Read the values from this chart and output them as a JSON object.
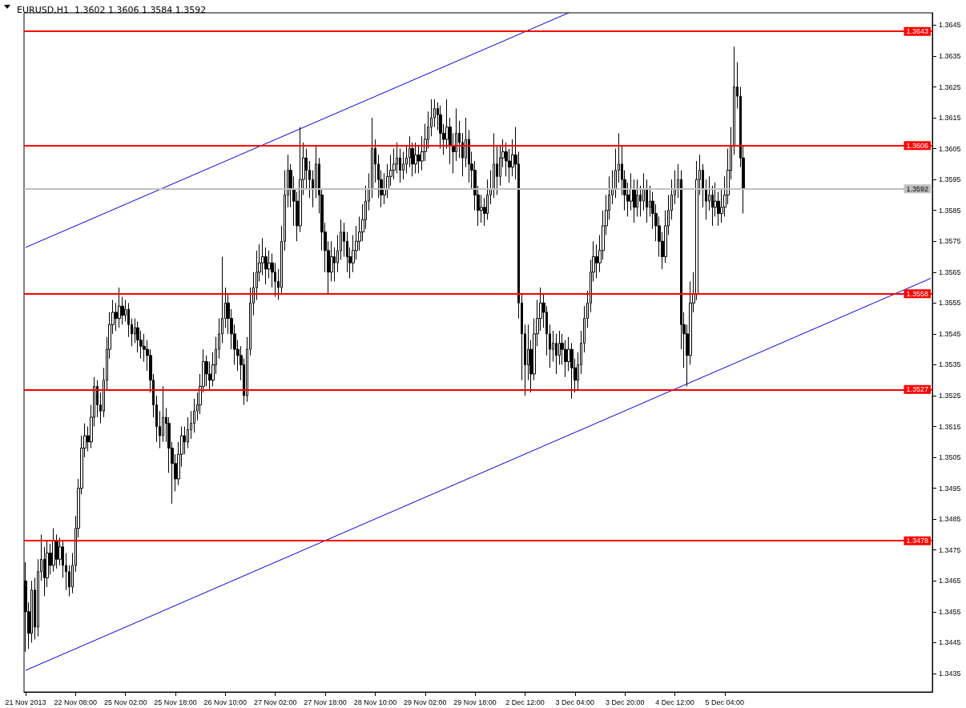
{
  "chart_data": {
    "type": "candlestick",
    "title": "EURUSD,H1  1.3602 1.3606 1.3584 1.3592",
    "categories": [
      "21 Nov 2013",
      null,
      null,
      null,
      null,
      null,
      null,
      null,
      null,
      null,
      null,
      null,
      null,
      null,
      null,
      null,
      "22 Nov 08:00",
      null,
      null,
      null,
      null,
      null,
      null,
      null,
      null,
      null,
      null,
      null,
      null,
      null,
      null,
      null,
      "25 Nov 02:00",
      null,
      null,
      null,
      null,
      null,
      null,
      null,
      null,
      null,
      null,
      null,
      null,
      null,
      null,
      null,
      "25 Nov 18:00",
      null,
      null,
      null,
      null,
      null,
      null,
      null,
      null,
      null,
      null,
      null,
      null,
      null,
      null,
      null,
      "26 Nov 10:00",
      null,
      null,
      null,
      null,
      null,
      null,
      null,
      null,
      null,
      null,
      null,
      null,
      null,
      null,
      null,
      "27 Nov 02:00",
      null,
      null,
      null,
      null,
      null,
      null,
      null,
      null,
      null,
      null,
      null,
      null,
      null,
      null,
      null,
      "27 Nov 18:00",
      null,
      null,
      null,
      null,
      null,
      null,
      null,
      null,
      null,
      null,
      null,
      null,
      null,
      null,
      null,
      "28 Nov 10:00",
      null,
      null,
      null,
      null,
      null,
      null,
      null,
      null,
      null,
      null,
      null,
      null,
      null,
      null,
      null,
      "29 Nov 02:00",
      null,
      null,
      null,
      null,
      null,
      null,
      null,
      null,
      null,
      null,
      null,
      null,
      null,
      null,
      null,
      "29 Nov 18:00",
      null,
      null,
      null,
      null,
      null,
      null,
      null,
      null,
      null,
      null,
      null,
      null,
      null,
      null,
      null,
      "2 Dec 12:00",
      null,
      null,
      null,
      null,
      null,
      null,
      null,
      null,
      null,
      null,
      null,
      null,
      null,
      null,
      null,
      "3 Dec 04:00",
      null,
      null,
      null,
      null,
      null,
      null,
      null,
      null,
      null,
      null,
      null,
      null,
      null,
      null,
      null,
      "3 Dec 20:00",
      null,
      null,
      null,
      null,
      null,
      null,
      null,
      null,
      null,
      null,
      null,
      null,
      null,
      null,
      null,
      "4 Dec 12:00",
      null,
      null,
      null,
      null,
      null,
      null,
      null,
      null,
      null,
      null,
      null,
      null,
      null,
      null,
      null,
      "5 Dec 04:00",
      null,
      null,
      null,
      null,
      null,
      null,
      null,
      null,
      null,
      null,
      null,
      null,
      null,
      null,
      null,
      null,
      null,
      null,
      null,
      null,
      null,
      null,
      null,
      null,
      null,
      null,
      null,
      null,
      null,
      null,
      null,
      null,
      null,
      null,
      null,
      null,
      null,
      null,
      null,
      null,
      null,
      null,
      null,
      null,
      null,
      null,
      null,
      null,
      null,
      null,
      null,
      null,
      null,
      null,
      null,
      null,
      null,
      null,
      null,
      null,
      null,
      null,
      null,
      null,
      null,
      null
    ],
    "ylim": [
      1.3429,
      1.3649
    ],
    "yticks": [
      1.3435,
      1.3445,
      1.3455,
      1.3465,
      1.3475,
      1.3485,
      1.3495,
      1.3505,
      1.3515,
      1.3525,
      1.3535,
      1.3545,
      1.3555,
      1.3565,
      1.3575,
      1.3585,
      1.3595,
      1.3605,
      1.3615,
      1.3625,
      1.3635,
      1.3645
    ],
    "grid": false,
    "ref_lines": [
      {
        "axis": "y",
        "value": 1.3643,
        "label": "1.3643",
        "color": "#ff0000"
      },
      {
        "axis": "y",
        "value": 1.3606,
        "label": "1.3606",
        "color": "#ff0000"
      },
      {
        "axis": "y",
        "value": 1.3558,
        "label": "1.3558",
        "color": "#ff0000"
      },
      {
        "axis": "y",
        "value": 1.3527,
        "label": "1.3527",
        "color": "#ff0000"
      },
      {
        "axis": "y",
        "value": 1.3478,
        "label": "1.3478",
        "color": "#ff0000"
      },
      {
        "axis": "y",
        "value": 1.3592,
        "label": "1.3592",
        "color": "#c0c0c0"
      }
    ],
    "series": [
      {
        "color": "#000000",
        "ohlc": [
          [
            1.3465,
            1.3471,
            1.3442,
            1.3455
          ],
          [
            1.3455,
            1.3458,
            1.3443,
            1.3448
          ],
          [
            1.3448,
            1.3465,
            1.3445,
            1.3462
          ],
          [
            1.3462,
            1.3466,
            1.3446,
            1.345
          ],
          [
            1.345,
            1.3472,
            1.3447,
            1.3468
          ],
          [
            1.3468,
            1.348,
            1.3465,
            1.3472
          ],
          [
            1.3472,
            1.3476,
            1.346,
            1.3466
          ],
          [
            1.3466,
            1.3478,
            1.3463,
            1.3474
          ],
          [
            1.3474,
            1.3477,
            1.3467,
            1.347
          ],
          [
            1.347,
            1.3482,
            1.3468,
            1.3478
          ],
          [
            1.3478,
            1.348,
            1.3469,
            1.3472
          ],
          [
            1.3472,
            1.3479,
            1.347,
            1.3476
          ],
          [
            1.3476,
            1.3478,
            1.3466,
            1.347
          ],
          [
            1.347,
            1.3474,
            1.3462,
            1.3468
          ],
          [
            1.3468,
            1.347,
            1.346,
            1.3463
          ],
          [
            1.3463,
            1.3474,
            1.3461,
            1.347
          ],
          [
            1.347,
            1.3486,
            1.3468,
            1.3482
          ],
          [
            1.3482,
            1.3498,
            1.3479,
            1.3495
          ],
          [
            1.3495,
            1.3512,
            1.3493,
            1.3508
          ],
          [
            1.3508,
            1.3516,
            1.3505,
            1.3512
          ],
          [
            1.3512,
            1.3515,
            1.3507,
            1.351
          ],
          [
            1.351,
            1.3522,
            1.3508,
            1.3518
          ],
          [
            1.3518,
            1.3531,
            1.3515,
            1.3528
          ],
          [
            1.3528,
            1.353,
            1.3518,
            1.3522
          ],
          [
            1.3522,
            1.3526,
            1.3516,
            1.352
          ],
          [
            1.352,
            1.3534,
            1.3518,
            1.353
          ],
          [
            1.353,
            1.3544,
            1.3527,
            1.354
          ],
          [
            1.354,
            1.3552,
            1.3537,
            1.3548
          ],
          [
            1.3548,
            1.3556,
            1.3545,
            1.3552
          ],
          [
            1.3552,
            1.3555,
            1.3546,
            1.355
          ],
          [
            1.355,
            1.356,
            1.3547,
            1.3554
          ],
          [
            1.3554,
            1.3557,
            1.3548,
            1.3551
          ],
          [
            1.3551,
            1.3556,
            1.3549,
            1.3553
          ],
          [
            1.3553,
            1.3555,
            1.3544,
            1.3548
          ],
          [
            1.3548,
            1.355,
            1.3541,
            1.3545
          ],
          [
            1.3545,
            1.355,
            1.3542,
            1.3547
          ],
          [
            1.3547,
            1.3549,
            1.3539,
            1.3543
          ],
          [
            1.3543,
            1.3546,
            1.3537,
            1.3541
          ],
          [
            1.3541,
            1.3545,
            1.3536,
            1.354
          ],
          [
            1.354,
            1.3543,
            1.3533,
            1.3538
          ],
          [
            1.3538,
            1.354,
            1.3526,
            1.353
          ],
          [
            1.353,
            1.3532,
            1.3518,
            1.3522
          ],
          [
            1.3522,
            1.3525,
            1.351,
            1.3515
          ],
          [
            1.3515,
            1.352,
            1.3508,
            1.3512
          ],
          [
            1.3512,
            1.3528,
            1.351,
            1.3518
          ],
          [
            1.3518,
            1.3521,
            1.351,
            1.3516
          ],
          [
            1.3516,
            1.3518,
            1.35,
            1.3508
          ],
          [
            1.3508,
            1.351,
            1.349,
            1.3503
          ],
          [
            1.3503,
            1.3506,
            1.3494,
            1.3498
          ],
          [
            1.3498,
            1.351,
            1.3496,
            1.3506
          ],
          [
            1.3506,
            1.3515,
            1.3502,
            1.3512
          ],
          [
            1.3512,
            1.3515,
            1.3506,
            1.351
          ],
          [
            1.351,
            1.3518,
            1.3508,
            1.3514
          ],
          [
            1.3514,
            1.352,
            1.3511,
            1.3516
          ],
          [
            1.3516,
            1.3524,
            1.3513,
            1.352
          ],
          [
            1.352,
            1.3526,
            1.3517,
            1.3522
          ],
          [
            1.3522,
            1.3532,
            1.3519,
            1.3528
          ],
          [
            1.3528,
            1.354,
            1.3526,
            1.3536
          ],
          [
            1.3536,
            1.3538,
            1.3528,
            1.3532
          ],
          [
            1.3532,
            1.3536,
            1.3527,
            1.353
          ],
          [
            1.353,
            1.3539,
            1.3528,
            1.3535
          ],
          [
            1.3535,
            1.3544,
            1.3532,
            1.354
          ],
          [
            1.354,
            1.355,
            1.3537,
            1.3545
          ],
          [
            1.3545,
            1.357,
            1.3542,
            1.355
          ],
          [
            1.355,
            1.356,
            1.3547,
            1.3555
          ],
          [
            1.3555,
            1.3558,
            1.3545,
            1.355
          ],
          [
            1.355,
            1.3553,
            1.354,
            1.3545
          ],
          [
            1.3545,
            1.3548,
            1.3535,
            1.354
          ],
          [
            1.354,
            1.3543,
            1.3533,
            1.3538
          ],
          [
            1.3538,
            1.3541,
            1.353,
            1.3535
          ],
          [
            1.3535,
            1.3537,
            1.3522,
            1.3525
          ],
          [
            1.3525,
            1.3544,
            1.3523,
            1.354
          ],
          [
            1.354,
            1.356,
            1.3538,
            1.3555
          ],
          [
            1.3555,
            1.3565,
            1.3551,
            1.356
          ],
          [
            1.356,
            1.3572,
            1.3556,
            1.3565
          ],
          [
            1.3565,
            1.3574,
            1.3562,
            1.3568
          ],
          [
            1.3568,
            1.3576,
            1.3564,
            1.357
          ],
          [
            1.357,
            1.3573,
            1.3561,
            1.3566
          ],
          [
            1.3566,
            1.3572,
            1.3563,
            1.3568
          ],
          [
            1.3568,
            1.3571,
            1.356,
            1.3565
          ],
          [
            1.3565,
            1.3568,
            1.3557,
            1.3562
          ],
          [
            1.3562,
            1.3566,
            1.3556,
            1.356
          ],
          [
            1.356,
            1.358,
            1.3558,
            1.3575
          ],
          [
            1.3575,
            1.3598,
            1.3572,
            1.359
          ],
          [
            1.359,
            1.3603,
            1.3586,
            1.3598
          ],
          [
            1.3598,
            1.36,
            1.3586,
            1.3592
          ],
          [
            1.3592,
            1.3596,
            1.358,
            1.3588
          ],
          [
            1.3588,
            1.3591,
            1.3575,
            1.358
          ],
          [
            1.358,
            1.3612,
            1.3578,
            1.3595
          ],
          [
            1.3595,
            1.3607,
            1.359,
            1.3602
          ],
          [
            1.3602,
            1.3605,
            1.3592,
            1.3598
          ],
          [
            1.3598,
            1.3601,
            1.3589,
            1.3595
          ],
          [
            1.3595,
            1.3598,
            1.3586,
            1.3592
          ],
          [
            1.3592,
            1.3606,
            1.3589,
            1.36
          ],
          [
            1.36,
            1.3602,
            1.3584,
            1.359
          ],
          [
            1.359,
            1.3592,
            1.3572,
            1.3578
          ],
          [
            1.3578,
            1.3581,
            1.3565,
            1.3572
          ],
          [
            1.3572,
            1.3575,
            1.3558,
            1.3565
          ],
          [
            1.3565,
            1.3575,
            1.3562,
            1.357
          ],
          [
            1.357,
            1.3573,
            1.3562,
            1.3568
          ],
          [
            1.3568,
            1.3577,
            1.3565,
            1.3572
          ],
          [
            1.3572,
            1.3582,
            1.3569,
            1.3578
          ],
          [
            1.3578,
            1.3581,
            1.357,
            1.3575
          ],
          [
            1.3575,
            1.3578,
            1.3565,
            1.357
          ],
          [
            1.357,
            1.3573,
            1.3563,
            1.3568
          ],
          [
            1.3568,
            1.3577,
            1.3565,
            1.3572
          ],
          [
            1.3572,
            1.358,
            1.3569,
            1.3575
          ],
          [
            1.3575,
            1.3583,
            1.3572,
            1.3578
          ],
          [
            1.3578,
            1.3587,
            1.3575,
            1.3582
          ],
          [
            1.3582,
            1.3593,
            1.3579,
            1.3588
          ],
          [
            1.3588,
            1.3597,
            1.3585,
            1.3592
          ],
          [
            1.3592,
            1.3615,
            1.3589,
            1.3605
          ],
          [
            1.3605,
            1.3608,
            1.3594,
            1.36
          ],
          [
            1.36,
            1.3603,
            1.3589,
            1.3595
          ],
          [
            1.3595,
            1.3598,
            1.3586,
            1.359
          ],
          [
            1.359,
            1.3597,
            1.3587,
            1.3592
          ],
          [
            1.3592,
            1.36,
            1.3589,
            1.3596
          ],
          [
            1.3596,
            1.3603,
            1.3593,
            1.3598
          ],
          [
            1.3598,
            1.3605,
            1.3595,
            1.36
          ],
          [
            1.36,
            1.3607,
            1.3597,
            1.3602
          ],
          [
            1.3602,
            1.3605,
            1.3594,
            1.3598
          ],
          [
            1.3598,
            1.3604,
            1.3595,
            1.36
          ],
          [
            1.36,
            1.3606,
            1.3597,
            1.3602
          ],
          [
            1.3602,
            1.3609,
            1.3599,
            1.3605
          ],
          [
            1.3605,
            1.3607,
            1.3596,
            1.36
          ],
          [
            1.36,
            1.3607,
            1.3597,
            1.3603
          ],
          [
            1.3603,
            1.3606,
            1.3597,
            1.3601
          ],
          [
            1.3601,
            1.3609,
            1.3598,
            1.3604
          ],
          [
            1.3604,
            1.3613,
            1.3601,
            1.3608
          ],
          [
            1.3608,
            1.3617,
            1.3605,
            1.3612
          ],
          [
            1.3612,
            1.3621,
            1.3609,
            1.3615
          ],
          [
            1.3615,
            1.3621,
            1.3612,
            1.3618
          ],
          [
            1.3618,
            1.362,
            1.3611,
            1.3616
          ],
          [
            1.3616,
            1.3619,
            1.3605,
            1.361
          ],
          [
            1.361,
            1.3613,
            1.3603,
            1.3608
          ],
          [
            1.3608,
            1.3621,
            1.3605,
            1.3612
          ],
          [
            1.3612,
            1.3615,
            1.36,
            1.3606
          ],
          [
            1.3606,
            1.361,
            1.3597,
            1.3604
          ],
          [
            1.3604,
            1.3618,
            1.3601,
            1.361
          ],
          [
            1.361,
            1.3614,
            1.3602,
            1.3607
          ],
          [
            1.3607,
            1.361,
            1.3596,
            1.3602
          ],
          [
            1.3602,
            1.3615,
            1.3599,
            1.3608
          ],
          [
            1.3608,
            1.3611,
            1.3594,
            1.36
          ],
          [
            1.36,
            1.3604,
            1.3592,
            1.3598
          ],
          [
            1.3598,
            1.3601,
            1.3585,
            1.359
          ],
          [
            1.359,
            1.3593,
            1.358,
            1.3585
          ],
          [
            1.3585,
            1.359,
            1.3581,
            1.3586
          ],
          [
            1.3586,
            1.3589,
            1.358,
            1.3584
          ],
          [
            1.3584,
            1.3595,
            1.3582,
            1.359
          ],
          [
            1.359,
            1.3598,
            1.3587,
            1.3592
          ],
          [
            1.3592,
            1.361,
            1.3589,
            1.36
          ],
          [
            1.36,
            1.3606,
            1.359,
            1.3596
          ],
          [
            1.3596,
            1.3606,
            1.3593,
            1.3602
          ],
          [
            1.3602,
            1.3608,
            1.3599,
            1.3604
          ],
          [
            1.3604,
            1.3607,
            1.3596,
            1.3601
          ],
          [
            1.3601,
            1.3605,
            1.3594,
            1.3599
          ],
          [
            1.3599,
            1.3608,
            1.3596,
            1.3603
          ],
          [
            1.3603,
            1.3612,
            1.3595,
            1.36
          ],
          [
            1.36,
            1.3604,
            1.355,
            1.3555
          ],
          [
            1.3555,
            1.3558,
            1.353,
            1.3545
          ],
          [
            1.3545,
            1.3548,
            1.3525,
            1.3535
          ],
          [
            1.3535,
            1.3548,
            1.353,
            1.354
          ],
          [
            1.354,
            1.3543,
            1.3526,
            1.3532
          ],
          [
            1.3532,
            1.355,
            1.353,
            1.3545
          ],
          [
            1.3545,
            1.3556,
            1.3541,
            1.355
          ],
          [
            1.355,
            1.356,
            1.3546,
            1.3555
          ],
          [
            1.3555,
            1.3558,
            1.3547,
            1.3552
          ],
          [
            1.3552,
            1.3554,
            1.3538,
            1.3545
          ],
          [
            1.3545,
            1.3548,
            1.3534,
            1.354
          ],
          [
            1.354,
            1.3546,
            1.3536,
            1.3542
          ],
          [
            1.3542,
            1.3545,
            1.3532,
            1.3538
          ],
          [
            1.3538,
            1.3546,
            1.3535,
            1.3542
          ],
          [
            1.3542,
            1.3545,
            1.3535,
            1.354
          ],
          [
            1.354,
            1.3543,
            1.3531,
            1.3536
          ],
          [
            1.3536,
            1.3544,
            1.3533,
            1.354
          ],
          [
            1.354,
            1.3542,
            1.3524,
            1.3534
          ],
          [
            1.3534,
            1.3537,
            1.3526,
            1.353
          ],
          [
            1.353,
            1.3539,
            1.3527,
            1.3535
          ],
          [
            1.3535,
            1.3546,
            1.3532,
            1.3542
          ],
          [
            1.3542,
            1.3554,
            1.3539,
            1.355
          ],
          [
            1.355,
            1.3559,
            1.3547,
            1.3555
          ],
          [
            1.3555,
            1.3569,
            1.3552,
            1.3565
          ],
          [
            1.3565,
            1.3575,
            1.3562,
            1.357
          ],
          [
            1.357,
            1.3574,
            1.3563,
            1.3568
          ],
          [
            1.3568,
            1.3577,
            1.3565,
            1.3572
          ],
          [
            1.3572,
            1.3585,
            1.3569,
            1.358
          ],
          [
            1.358,
            1.359,
            1.3577,
            1.3585
          ],
          [
            1.3585,
            1.3596,
            1.3582,
            1.359
          ],
          [
            1.359,
            1.3598,
            1.3587,
            1.3592
          ],
          [
            1.3592,
            1.3605,
            1.3589,
            1.3598
          ],
          [
            1.3598,
            1.361,
            1.3594,
            1.36
          ],
          [
            1.36,
            1.3606,
            1.359,
            1.3595
          ],
          [
            1.3595,
            1.3598,
            1.3585,
            1.359
          ],
          [
            1.359,
            1.3594,
            1.3583,
            1.3588
          ],
          [
            1.3588,
            1.3597,
            1.3585,
            1.3592
          ],
          [
            1.3592,
            1.3595,
            1.3581,
            1.3586
          ],
          [
            1.3586,
            1.3595,
            1.3583,
            1.359
          ],
          [
            1.359,
            1.3593,
            1.3583,
            1.3588
          ],
          [
            1.3588,
            1.3597,
            1.3585,
            1.3592
          ],
          [
            1.3592,
            1.3595,
            1.3581,
            1.3586
          ],
          [
            1.3586,
            1.3593,
            1.3583,
            1.3588
          ],
          [
            1.3588,
            1.3591,
            1.3579,
            1.3584
          ],
          [
            1.3584,
            1.3587,
            1.3575,
            1.358
          ],
          [
            1.358,
            1.3583,
            1.357,
            1.3575
          ],
          [
            1.3575,
            1.3578,
            1.3566,
            1.357
          ],
          [
            1.357,
            1.3585,
            1.3568,
            1.358
          ],
          [
            1.358,
            1.359,
            1.3577,
            1.3585
          ],
          [
            1.3585,
            1.3595,
            1.3582,
            1.359
          ],
          [
            1.359,
            1.3598,
            1.3587,
            1.3592
          ],
          [
            1.3592,
            1.36,
            1.3589,
            1.3595
          ],
          [
            1.3595,
            1.3598,
            1.354,
            1.3548
          ],
          [
            1.3548,
            1.3552,
            1.3534,
            1.3545
          ],
          [
            1.3545,
            1.3548,
            1.3528,
            1.3538
          ],
          [
            1.3538,
            1.3562,
            1.3535,
            1.3555
          ],
          [
            1.3555,
            1.3565,
            1.3552,
            1.3558
          ],
          [
            1.3558,
            1.3601,
            1.3556,
            1.3595
          ],
          [
            1.3595,
            1.3603,
            1.359,
            1.3598
          ],
          [
            1.3598,
            1.36,
            1.3586,
            1.3592
          ],
          [
            1.3592,
            1.3595,
            1.3582,
            1.3588
          ],
          [
            1.3588,
            1.3596,
            1.3585,
            1.359
          ],
          [
            1.359,
            1.3593,
            1.358,
            1.3586
          ],
          [
            1.3586,
            1.3594,
            1.3583,
            1.3588
          ],
          [
            1.3588,
            1.3591,
            1.358,
            1.3584
          ],
          [
            1.3584,
            1.3592,
            1.3581,
            1.3586
          ],
          [
            1.3586,
            1.3596,
            1.3583,
            1.359
          ],
          [
            1.359,
            1.3605,
            1.3587,
            1.3598
          ],
          [
            1.3598,
            1.3612,
            1.3595,
            1.3606
          ],
          [
            1.3606,
            1.3638,
            1.3603,
            1.3625
          ],
          [
            1.3625,
            1.3633,
            1.3618,
            1.3622
          ],
          [
            1.3622,
            1.3625,
            1.3599,
            1.3602
          ],
          [
            1.3602,
            1.3606,
            1.3584,
            1.3592
          ],
          null,
          null,
          null,
          null,
          null,
          null,
          null,
          null,
          null,
          null,
          null,
          null,
          null,
          null,
          null,
          null,
          null,
          null,
          null,
          null,
          null,
          null,
          null,
          null,
          null,
          null,
          null,
          null,
          null,
          null,
          null,
          null,
          null,
          null,
          null,
          null,
          null,
          null,
          null,
          null,
          null,
          null,
          null,
          null,
          null,
          null,
          null,
          null,
          null,
          null,
          null,
          null,
          null,
          null,
          null,
          null,
          null,
          null,
          null,
          null
        ]
      },
      {
        "type": "line",
        "color": "#0000cc",
        "values": [
          1.3573,
          null,
          null,
          null,
          null,
          null,
          null,
          null,
          null,
          null,
          null,
          null,
          null,
          null,
          null,
          null,
          null,
          null,
          null,
          null,
          null,
          null,
          null,
          null,
          null,
          null,
          null,
          null,
          null,
          null,
          null,
          null,
          null,
          null,
          null,
          null,
          null,
          null,
          null,
          null,
          null,
          null,
          null,
          null,
          null,
          null,
          null,
          null,
          null,
          null,
          null,
          null,
          null,
          null,
          null,
          null,
          null,
          null,
          null,
          null,
          null,
          null,
          null,
          null,
          null,
          null,
          null,
          null,
          null,
          null,
          null,
          null,
          null,
          null,
          null,
          null,
          null,
          null,
          null,
          null,
          null,
          null,
          null,
          null,
          null,
          null,
          null,
          null,
          null,
          null,
          null,
          null,
          null,
          null,
          null,
          null,
          null,
          null,
          null,
          null,
          null,
          null,
          null,
          null,
          null,
          null,
          null,
          null,
          null,
          null,
          null,
          null,
          null,
          null,
          null,
          null,
          null,
          null,
          null,
          null,
          null,
          null,
          null,
          null,
          null,
          null,
          null,
          null,
          null,
          null,
          null,
          null,
          null,
          null,
          null,
          null,
          null,
          null,
          null,
          null,
          null,
          null,
          null,
          null,
          null,
          null,
          null,
          null,
          null,
          null,
          null,
          null,
          null,
          null,
          null,
          null,
          null,
          null,
          null,
          null,
          null,
          null,
          null,
          null,
          null,
          null,
          null,
          null,
          null,
          null,
          null,
          null,
          null,
          null,
          1.3649,
          null,
          null,
          null,
          null,
          null,
          null,
          null,
          null,
          null,
          null,
          null,
          null,
          null,
          null,
          null,
          null,
          null,
          null,
          null,
          null,
          null,
          null,
          null,
          null,
          null,
          null,
          null,
          null,
          null,
          null,
          null,
          null,
          null,
          null,
          null,
          null,
          null,
          null,
          null,
          null,
          null,
          null,
          null,
          null,
          null,
          null,
          null,
          null,
          null,
          null,
          null,
          null,
          null,
          null,
          null,
          null,
          null,
          null,
          null,
          null,
          null,
          null,
          null,
          null,
          null,
          null,
          null,
          null,
          null,
          null,
          null,
          null,
          null,
          null,
          null,
          null,
          null,
          null,
          null,
          null,
          null,
          null,
          null,
          null,
          null,
          null,
          null,
          null,
          null,
          null,
          null,
          null,
          null,
          null,
          null,
          null,
          null,
          null,
          null,
          null,
          null,
          null,
          null,
          null,
          null,
          null,
          null,
          null,
          null,
          null,
          null,
          null,
          null,
          null,
          null,
          null
        ]
      },
      {
        "type": "line",
        "color": "#0000cc",
        "values": [
          1.3436,
          null,
          null,
          null,
          null,
          null,
          null,
          null,
          null,
          null,
          null,
          null,
          null,
          null,
          null,
          null,
          null,
          null,
          null,
          null,
          null,
          null,
          null,
          null,
          null,
          null,
          null,
          null,
          null,
          null,
          null,
          null,
          null,
          null,
          null,
          null,
          null,
          null,
          null,
          null,
          null,
          null,
          null,
          null,
          null,
          null,
          null,
          null,
          null,
          null,
          null,
          null,
          null,
          null,
          null,
          null,
          null,
          null,
          null,
          null,
          null,
          null,
          null,
          null,
          null,
          null,
          null,
          null,
          null,
          null,
          null,
          null,
          null,
          null,
          null,
          null,
          null,
          null,
          null,
          null,
          null,
          null,
          null,
          null,
          null,
          null,
          null,
          null,
          null,
          null,
          null,
          null,
          null,
          null,
          null,
          null,
          null,
          null,
          null,
          null,
          null,
          null,
          null,
          null,
          null,
          null,
          null,
          null,
          null,
          null,
          null,
          null,
          null,
          null,
          null,
          null,
          null,
          null,
          null,
          null,
          null,
          null,
          null,
          null,
          null,
          null,
          null,
          null,
          null,
          null,
          null,
          null,
          null,
          null,
          null,
          null,
          null,
          null,
          null,
          null,
          null,
          null,
          null,
          null,
          null,
          null,
          null,
          null,
          null,
          null,
          null,
          null,
          null,
          null,
          null,
          null,
          null,
          null,
          null,
          null,
          null,
          null,
          null,
          null,
          null,
          null,
          null,
          null,
          null,
          null,
          null,
          null,
          null,
          null,
          null,
          null,
          null,
          null,
          null,
          null,
          null,
          null,
          null,
          null,
          null,
          null,
          null,
          null,
          null,
          null,
          null,
          null,
          null,
          null,
          null,
          null,
          null,
          null,
          null,
          null,
          null,
          null,
          null,
          null,
          null,
          null,
          null,
          null,
          null,
          null,
          null,
          null,
          null,
          null,
          null,
          null,
          null,
          null,
          null,
          null,
          null,
          null,
          null,
          null,
          null,
          null,
          null,
          null,
          null,
          null,
          null,
          null,
          null,
          null,
          null,
          null,
          null,
          null,
          null,
          null,
          null,
          null,
          null,
          null,
          null,
          null,
          null,
          null,
          null,
          null,
          null,
          null,
          null,
          null,
          null,
          null,
          null,
          null,
          null,
          null,
          null,
          null,
          null,
          null,
          null,
          null,
          null,
          null,
          null,
          null,
          null,
          null,
          null,
          null,
          null,
          null,
          null,
          null,
          null,
          null,
          null,
          null,
          null,
          null,
          null,
          null,
          null,
          null,
          null,
          null,
          1.3563
        ]
      }
    ]
  }
}
